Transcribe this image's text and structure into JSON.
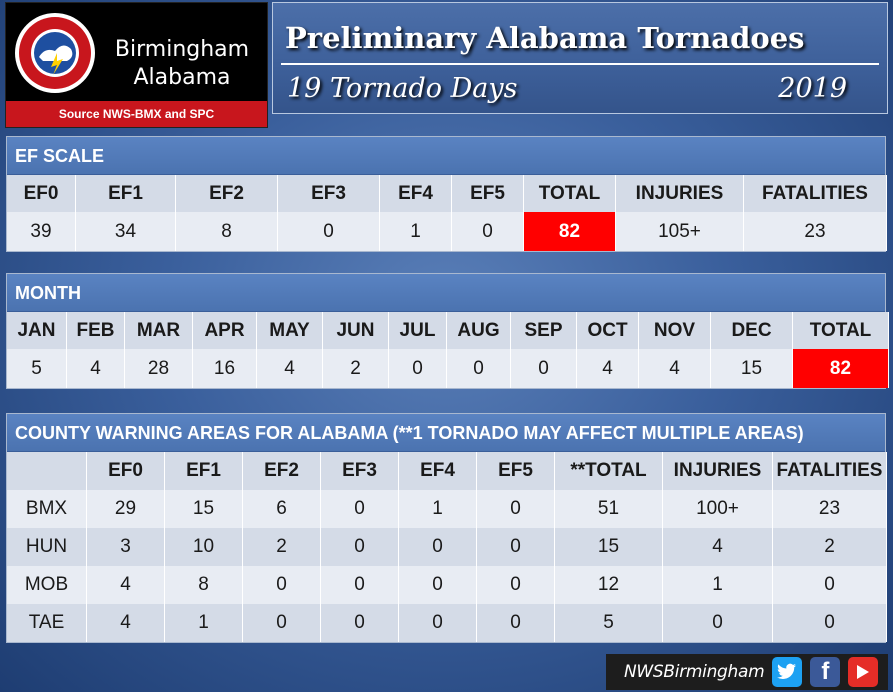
{
  "logo": {
    "city_line1": "Birmingham",
    "city_line2": "Alabama",
    "source": "Source NWS-BMX and SPC"
  },
  "title": {
    "main": "Preliminary Alabama Tornadoes",
    "subtitle": "19 Tornado Days",
    "year": "2019"
  },
  "ef_scale": {
    "heading": "EF SCALE",
    "headers": [
      "EF0",
      "EF1",
      "EF2",
      "EF3",
      "EF4",
      "EF5",
      "TOTAL",
      "INJURIES",
      "FATALITIES"
    ],
    "values": [
      "39",
      "34",
      "8",
      "0",
      "1",
      "0",
      "82",
      "105+",
      "23"
    ]
  },
  "month": {
    "heading": "MONTH",
    "headers": [
      "JAN",
      "FEB",
      "MAR",
      "APR",
      "MAY",
      "JUN",
      "JUL",
      "AUG",
      "SEP",
      "OCT",
      "NOV",
      "DEC",
      "TOTAL"
    ],
    "values": [
      "5",
      "4",
      "28",
      "16",
      "4",
      "2",
      "0",
      "0",
      "0",
      "4",
      "4",
      "15",
      "82"
    ]
  },
  "cwa": {
    "heading": "COUNTY WARNING AREAS FOR ALABAMA (**1 TORNADO MAY AFFECT MULTIPLE AREAS)",
    "headers": [
      "",
      "EF0",
      "EF1",
      "EF2",
      "EF3",
      "EF4",
      "EF5",
      "**TOTAL",
      "INJURIES",
      "FATALITIES"
    ],
    "rows": [
      [
        "BMX",
        "29",
        "15",
        "6",
        "0",
        "1",
        "0",
        "51",
        "100+",
        "23"
      ],
      [
        "HUN",
        "3",
        "10",
        "2",
        "0",
        "0",
        "0",
        "15",
        "4",
        "2"
      ],
      [
        "MOB",
        "4",
        "8",
        "0",
        "0",
        "0",
        "0",
        "12",
        "1",
        "0"
      ],
      [
        "TAE",
        "4",
        "1",
        "0",
        "0",
        "0",
        "0",
        "5",
        "0",
        "0"
      ]
    ]
  },
  "footer": {
    "handle": "NWSBirmingham",
    "icons": [
      "twitter-icon",
      "facebook-icon",
      "youtube-icon"
    ]
  },
  "colors": {
    "highlight": "#ff0000",
    "header_bar": "#4b73b0",
    "source_bar": "#c8161d"
  }
}
